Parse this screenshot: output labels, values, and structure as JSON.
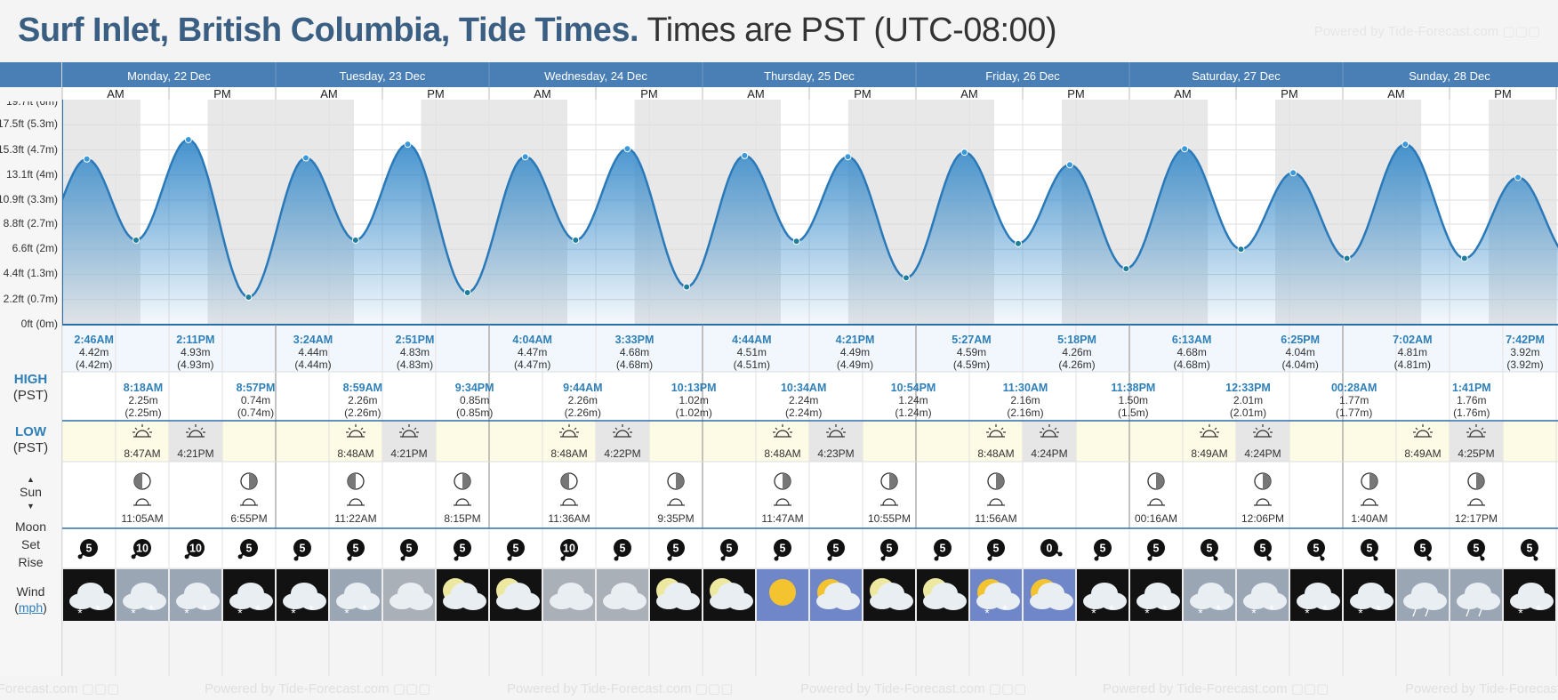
{
  "header": {
    "location_title": "Surf Inlet, British Columbia, Tide Times.",
    "timezone_note": "Times are PST (UTC-08:00)",
    "powered_by": "Powered by Tide-Forecast.com"
  },
  "row_labels": {
    "high": "HIGH",
    "high_sub": "(PST)",
    "low": "LOW",
    "low_sub": "(PST)",
    "sun": "Sun",
    "moon": "Moon",
    "set": "Set",
    "rise": "Rise",
    "wind": "Wind",
    "wind_unit": "mph"
  },
  "half_day_labels": [
    "AM",
    "PM"
  ],
  "days": [
    "Monday, 22 Dec",
    "Tuesday, 23 Dec",
    "Wednesday, 24 Dec",
    "Thursday, 25 Dec",
    "Friday, 26 Dec",
    "Saturday, 27 Dec",
    "Sunday, 28 Dec"
  ],
  "y_axis": {
    "top_cut_label": "19.7ft (6m)",
    "ticks": [
      "17.5ft (5.3m)",
      "15.3ft (4.7m)",
      "13.1ft (4m)",
      "10.9ft (3.3m)",
      "8.8ft (2.7m)",
      "6.6ft (2m)",
      "4.4ft (1.3m)",
      "2.2ft (0.7m)",
      "0ft (0m)"
    ]
  },
  "tides": {
    "high": [
      {
        "time": "2:46AM",
        "m": "4.42m",
        "mm": "(4.42m)"
      },
      {
        "time": "2:11PM",
        "m": "4.93m",
        "mm": "(4.93m)"
      },
      {
        "time": "3:24AM",
        "m": "4.44m",
        "mm": "(4.44m)"
      },
      {
        "time": "2:51PM",
        "m": "4.83m",
        "mm": "(4.83m)"
      },
      {
        "time": "4:04AM",
        "m": "4.47m",
        "mm": "(4.47m)"
      },
      {
        "time": "3:33PM",
        "m": "4.68m",
        "mm": "(4.68m)"
      },
      {
        "time": "4:44AM",
        "m": "4.51m",
        "mm": "(4.51m)"
      },
      {
        "time": "4:21PM",
        "m": "4.49m",
        "mm": "(4.49m)"
      },
      {
        "time": "5:27AM",
        "m": "4.59m",
        "mm": "(4.59m)"
      },
      {
        "time": "5:18PM",
        "m": "4.26m",
        "mm": "(4.26m)"
      },
      {
        "time": "6:13AM",
        "m": "4.68m",
        "mm": "(4.68m)"
      },
      {
        "time": "6:25PM",
        "m": "4.04m",
        "mm": "(4.04m)"
      },
      {
        "time": "7:02AM",
        "m": "4.81m",
        "mm": "(4.81m)"
      },
      {
        "time": "7:42PM",
        "m": "3.92m",
        "mm": "(3.92m)"
      }
    ],
    "low": [
      {
        "time": "8:18AM",
        "m": "2.25m",
        "mm": "(2.25m)"
      },
      {
        "time": "8:57PM",
        "m": "0.74m",
        "mm": "(0.74m)"
      },
      {
        "time": "8:59AM",
        "m": "2.26m",
        "mm": "(2.26m)"
      },
      {
        "time": "9:34PM",
        "m": "0.85m",
        "mm": "(0.85m)"
      },
      {
        "time": "9:44AM",
        "m": "2.26m",
        "mm": "(2.26m)"
      },
      {
        "time": "10:13PM",
        "m": "1.02m",
        "mm": "(1.02m)"
      },
      {
        "time": "10:34AM",
        "m": "2.24m",
        "mm": "(2.24m)"
      },
      {
        "time": "10:54PM",
        "m": "1.24m",
        "mm": "(1.24m)"
      },
      {
        "time": "11:30AM",
        "m": "2.16m",
        "mm": "(2.16m)"
      },
      {
        "time": "11:38PM",
        "m": "1.50m",
        "mm": "(1.5m)"
      },
      {
        "time": "12:33PM",
        "m": "2.01m",
        "mm": "(2.01m)"
      },
      {
        "time": "00:28AM",
        "m": "1.77m",
        "mm": "(1.77m)"
      },
      {
        "time": "1:41PM",
        "m": "1.76m",
        "mm": "(1.76m)"
      }
    ]
  },
  "sun": [
    {
      "rise": "8:47AM",
      "set": "4:21PM"
    },
    {
      "rise": "8:48AM",
      "set": "4:21PM"
    },
    {
      "rise": "8:48AM",
      "set": "4:22PM"
    },
    {
      "rise": "8:48AM",
      "set": "4:23PM"
    },
    {
      "rise": "8:48AM",
      "set": "4:24PM"
    },
    {
      "rise": "8:49AM",
      "set": "4:24PM"
    },
    {
      "rise": "8:49AM",
      "set": "4:25PM"
    }
  ],
  "moon": [
    {
      "time": "11:05AM",
      "event": "rise",
      "phase": "waning-crescent-icon"
    },
    {
      "time": "6:55PM",
      "event": "set",
      "phase": "waxing-crescent-icon"
    },
    {
      "time": "11:22AM",
      "event": "rise",
      "phase": "waning-crescent-icon"
    },
    {
      "time": "8:15PM",
      "event": "set",
      "phase": "waxing-crescent-icon"
    },
    {
      "time": "11:36AM",
      "event": "rise",
      "phase": "waning-crescent-icon"
    },
    {
      "time": "9:35PM",
      "event": "set",
      "phase": "waxing-crescent-icon"
    },
    {
      "time": "11:47AM",
      "event": "rise",
      "phase": "waxing-crescent-icon"
    },
    {
      "time": "10:55PM",
      "event": "set",
      "phase": "first-quarter-icon"
    },
    {
      "time": "11:56AM",
      "event": "rise",
      "phase": "first-quarter-icon"
    },
    {
      "time": "00:16AM",
      "event": "set",
      "phase": "first-quarter-icon"
    },
    {
      "time": "12:06PM",
      "event": "rise",
      "phase": "first-quarter-icon"
    },
    {
      "time": "1:40AM",
      "event": "set",
      "phase": "first-quarter-icon"
    },
    {
      "time": "12:17PM",
      "event": "rise",
      "phase": "first-quarter-icon"
    }
  ],
  "wind": [
    "5",
    "10",
    "10",
    "5",
    "5",
    "5",
    "5",
    "5",
    "5",
    "10",
    "5",
    "5",
    "5",
    "5",
    "5",
    "5",
    "5",
    "5",
    "0",
    "5",
    "5",
    "5",
    "5",
    "5",
    "5",
    "5",
    "5",
    "5"
  ],
  "weather": [
    "snow-night",
    "snow",
    "snow",
    "snow-night",
    "snow-night",
    "snow",
    "cloudy",
    "partly-cloudy-night",
    "partly-cloudy-night",
    "cloudy",
    "cloudy",
    "partly-cloudy-night",
    "partly-cloudy-night",
    "sunny",
    "partly-sunny",
    "partly-cloudy-night",
    "partly-cloudy-night",
    "snow-partly-sunny",
    "partly-sunny",
    "snow-night",
    "snow-night",
    "snow",
    "snow",
    "snow-night",
    "snow-night",
    "rain",
    "sleet",
    "snow-night"
  ],
  "colors": {
    "header_bar": "#4a7fb5",
    "tide_fill": "#2f86c8",
    "tide_line": "#2a79b8",
    "night_shade": "#e8e8e8",
    "accent_text": "#2f80b9",
    "sun_row": "#fdfbe6"
  },
  "chart_data": {
    "type": "area",
    "xlabel": "",
    "ylabel": "",
    "y_unit": "ft",
    "ylim": [
      0,
      19.7
    ],
    "series": [
      {
        "name": "",
        "points": [
          {
            "x": "Dec 22 2:46AM",
            "y": 14.5,
            "kind": "high"
          },
          {
            "x": "Dec 22 8:18AM",
            "y": 7.4,
            "kind": "low"
          },
          {
            "x": "Dec 22 2:11PM",
            "y": 16.2,
            "kind": "high"
          },
          {
            "x": "Dec 22 8:57PM",
            "y": 2.4,
            "kind": "low"
          },
          {
            "x": "Dec 23 3:24AM",
            "y": 14.6,
            "kind": "high"
          },
          {
            "x": "Dec 23 8:59AM",
            "y": 7.4,
            "kind": "low"
          },
          {
            "x": "Dec 23 2:51PM",
            "y": 15.8,
            "kind": "high"
          },
          {
            "x": "Dec 23 9:34PM",
            "y": 2.8,
            "kind": "low"
          },
          {
            "x": "Dec 24 4:04AM",
            "y": 14.7,
            "kind": "high"
          },
          {
            "x": "Dec 24 9:44AM",
            "y": 7.4,
            "kind": "low"
          },
          {
            "x": "Dec 24 3:33PM",
            "y": 15.4,
            "kind": "high"
          },
          {
            "x": "Dec 24 10:13PM",
            "y": 3.3,
            "kind": "low"
          },
          {
            "x": "Dec 25 4:44AM",
            "y": 14.8,
            "kind": "high"
          },
          {
            "x": "Dec 25 10:34AM",
            "y": 7.3,
            "kind": "low"
          },
          {
            "x": "Dec 25 4:21PM",
            "y": 14.7,
            "kind": "high"
          },
          {
            "x": "Dec 25 10:54PM",
            "y": 4.1,
            "kind": "low"
          },
          {
            "x": "Dec 26 5:27AM",
            "y": 15.1,
            "kind": "high"
          },
          {
            "x": "Dec 26 11:30AM",
            "y": 7.1,
            "kind": "low"
          },
          {
            "x": "Dec 26 5:18PM",
            "y": 14.0,
            "kind": "high"
          },
          {
            "x": "Dec 26 11:38PM",
            "y": 4.9,
            "kind": "low"
          },
          {
            "x": "Dec 27 6:13AM",
            "y": 15.4,
            "kind": "high"
          },
          {
            "x": "Dec 27 12:33PM",
            "y": 6.6,
            "kind": "low"
          },
          {
            "x": "Dec 27 6:25PM",
            "y": 13.3,
            "kind": "high"
          },
          {
            "x": "Dec 28 00:28AM",
            "y": 5.8,
            "kind": "low"
          },
          {
            "x": "Dec 28 7:02AM",
            "y": 15.8,
            "kind": "high"
          },
          {
            "x": "Dec 28 1:41PM",
            "y": 5.8,
            "kind": "low"
          },
          {
            "x": "Dec 28 7:42PM",
            "y": 12.9,
            "kind": "high"
          }
        ]
      }
    ]
  }
}
